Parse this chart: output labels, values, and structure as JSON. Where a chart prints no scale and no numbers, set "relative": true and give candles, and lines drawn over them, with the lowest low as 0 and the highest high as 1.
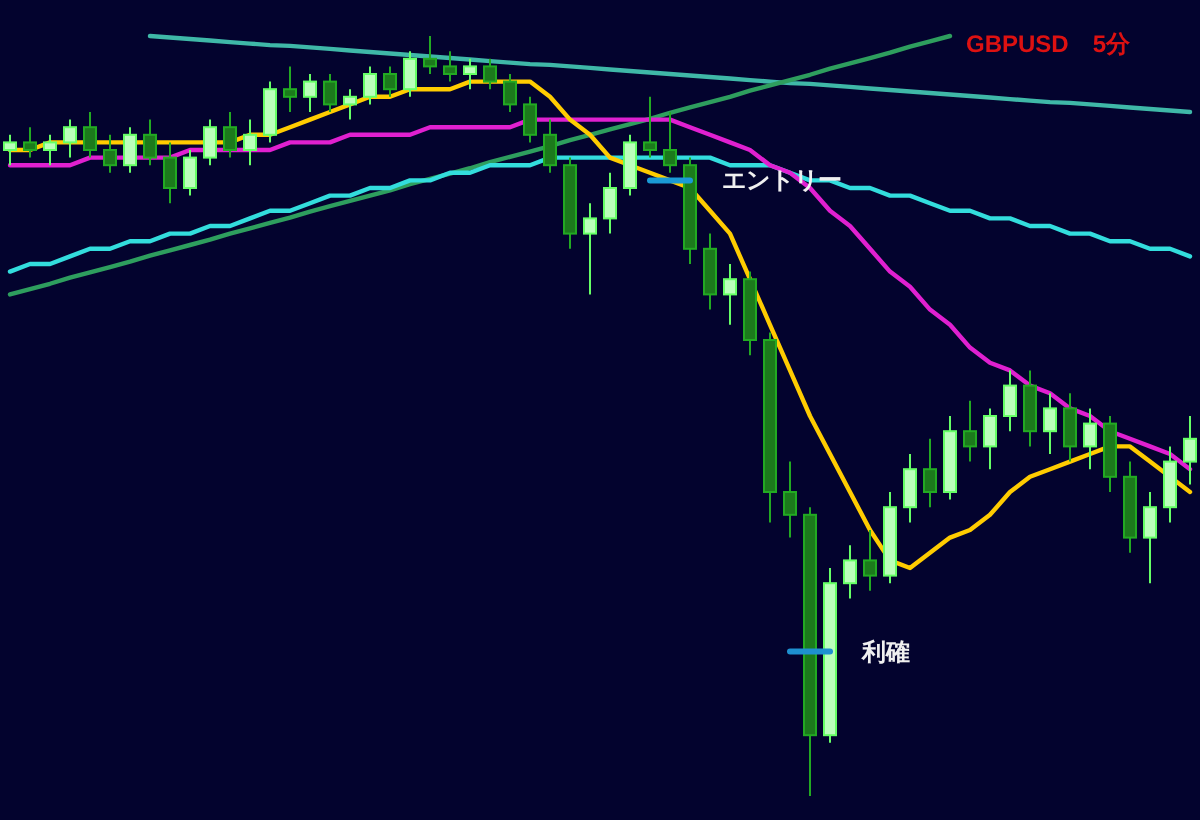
{
  "chart_data": {
    "type": "candlestick",
    "title": "GBPUSD　5分",
    "relative": true,
    "categories": [
      null,
      null,
      null,
      null,
      null,
      null,
      null,
      null,
      null,
      null,
      null,
      null,
      null,
      null,
      null,
      null,
      null,
      null,
      null,
      null,
      null,
      null,
      null,
      null,
      null,
      null,
      null,
      null,
      null,
      null,
      null,
      null,
      null,
      null,
      null,
      null,
      null,
      null,
      null,
      null,
      null,
      null,
      null,
      null,
      null,
      null,
      null,
      null,
      null,
      null,
      null,
      null,
      null,
      null,
      null,
      null,
      null,
      null,
      null,
      null
    ],
    "ohlc": [
      [
        0.85,
        0.87,
        0.83,
        0.86
      ],
      [
        0.86,
        0.88,
        0.84,
        0.85
      ],
      [
        0.85,
        0.87,
        0.83,
        0.86
      ],
      [
        0.86,
        0.89,
        0.84,
        0.88
      ],
      [
        0.88,
        0.9,
        0.84,
        0.85
      ],
      [
        0.85,
        0.87,
        0.82,
        0.83
      ],
      [
        0.83,
        0.88,
        0.82,
        0.87
      ],
      [
        0.87,
        0.89,
        0.83,
        0.84
      ],
      [
        0.84,
        0.86,
        0.78,
        0.8
      ],
      [
        0.8,
        0.85,
        0.79,
        0.84
      ],
      [
        0.84,
        0.89,
        0.83,
        0.88
      ],
      [
        0.88,
        0.9,
        0.84,
        0.85
      ],
      [
        0.85,
        0.89,
        0.83,
        0.87
      ],
      [
        0.87,
        0.94,
        0.86,
        0.93
      ],
      [
        0.93,
        0.96,
        0.9,
        0.92
      ],
      [
        0.92,
        0.95,
        0.9,
        0.94
      ],
      [
        0.94,
        0.95,
        0.9,
        0.91
      ],
      [
        0.91,
        0.93,
        0.89,
        0.92
      ],
      [
        0.92,
        0.96,
        0.91,
        0.95
      ],
      [
        0.95,
        0.96,
        0.92,
        0.93
      ],
      [
        0.93,
        0.98,
        0.92,
        0.97
      ],
      [
        0.97,
        1.0,
        0.95,
        0.96
      ],
      [
        0.96,
        0.98,
        0.94,
        0.95
      ],
      [
        0.95,
        0.97,
        0.93,
        0.96
      ],
      [
        0.96,
        0.97,
        0.93,
        0.94
      ],
      [
        0.94,
        0.95,
        0.9,
        0.91
      ],
      [
        0.91,
        0.92,
        0.86,
        0.87
      ],
      [
        0.87,
        0.89,
        0.82,
        0.83
      ],
      [
        0.83,
        0.84,
        0.72,
        0.74
      ],
      [
        0.74,
        0.78,
        0.66,
        0.76
      ],
      [
        0.76,
        0.82,
        0.74,
        0.8
      ],
      [
        0.8,
        0.87,
        0.79,
        0.86
      ],
      [
        0.86,
        0.92,
        0.84,
        0.85
      ],
      [
        0.85,
        0.9,
        0.82,
        0.83
      ],
      [
        0.83,
        0.84,
        0.7,
        0.72
      ],
      [
        0.72,
        0.74,
        0.64,
        0.66
      ],
      [
        0.66,
        0.7,
        0.62,
        0.68
      ],
      [
        0.68,
        0.69,
        0.58,
        0.6
      ],
      [
        0.6,
        0.61,
        0.36,
        0.4
      ],
      [
        0.4,
        0.44,
        0.34,
        0.37
      ],
      [
        0.37,
        0.38,
        0.0,
        0.08
      ],
      [
        0.08,
        0.3,
        0.07,
        0.28
      ],
      [
        0.28,
        0.33,
        0.26,
        0.31
      ],
      [
        0.31,
        0.35,
        0.27,
        0.29
      ],
      [
        0.29,
        0.4,
        0.28,
        0.38
      ],
      [
        0.38,
        0.45,
        0.36,
        0.43
      ],
      [
        0.43,
        0.47,
        0.38,
        0.4
      ],
      [
        0.4,
        0.5,
        0.39,
        0.48
      ],
      [
        0.48,
        0.52,
        0.44,
        0.46
      ],
      [
        0.46,
        0.51,
        0.43,
        0.5
      ],
      [
        0.5,
        0.56,
        0.48,
        0.54
      ],
      [
        0.54,
        0.56,
        0.46,
        0.48
      ],
      [
        0.48,
        0.53,
        0.45,
        0.51
      ],
      [
        0.51,
        0.53,
        0.44,
        0.46
      ],
      [
        0.46,
        0.51,
        0.43,
        0.49
      ],
      [
        0.49,
        0.5,
        0.4,
        0.42
      ],
      [
        0.42,
        0.44,
        0.32,
        0.34
      ],
      [
        0.34,
        0.4,
        0.28,
        0.38
      ],
      [
        0.38,
        0.46,
        0.36,
        0.44
      ],
      [
        0.44,
        0.5,
        0.41,
        0.47
      ]
    ],
    "series": [
      {
        "type": "line",
        "color": "#3fb8a8",
        "values": [
          null,
          null,
          null,
          null,
          null,
          null,
          null,
          1.0,
          0.998,
          0.996,
          0.994,
          0.992,
          0.99,
          0.988,
          0.987,
          0.985,
          0.983,
          0.981,
          0.979,
          0.977,
          0.975,
          0.973,
          0.971,
          0.969,
          0.967,
          0.965,
          0.963,
          0.962,
          0.96,
          0.958,
          0.956,
          0.954,
          0.952,
          0.95,
          0.948,
          0.946,
          0.944,
          0.942,
          0.94,
          0.938,
          0.937,
          0.935,
          0.933,
          0.931,
          0.929,
          0.927,
          0.925,
          0.923,
          0.921,
          0.919,
          0.917,
          0.915,
          0.913,
          0.912,
          0.91,
          0.908,
          0.906,
          0.904,
          0.902,
          0.9
        ]
      },
      {
        "type": "line",
        "color": "#2e9e5e",
        "values": [
          0.66,
          0.667,
          0.674,
          0.682,
          0.689,
          0.696,
          0.703,
          0.711,
          0.718,
          0.725,
          0.732,
          0.74,
          0.747,
          0.754,
          0.761,
          0.769,
          0.776,
          0.783,
          0.79,
          0.797,
          0.805,
          0.812,
          0.819,
          0.826,
          0.834,
          0.841,
          0.848,
          0.855,
          0.863,
          0.87,
          0.877,
          0.884,
          0.891,
          0.899,
          0.906,
          0.913,
          0.92,
          0.928,
          0.935,
          0.942,
          0.949,
          0.957,
          0.964,
          0.971,
          0.978,
          0.986,
          0.993,
          1.0,
          null,
          null,
          null,
          null,
          null,
          null,
          null,
          null,
          null,
          null,
          null,
          null
        ]
      },
      {
        "type": "line",
        "color": "#33dddd",
        "values": [
          0.69,
          0.7,
          0.7,
          0.71,
          0.72,
          0.72,
          0.73,
          0.73,
          0.74,
          0.74,
          0.75,
          0.75,
          0.76,
          0.77,
          0.77,
          0.78,
          0.79,
          0.79,
          0.8,
          0.8,
          0.81,
          0.81,
          0.82,
          0.82,
          0.83,
          0.83,
          0.83,
          0.84,
          0.84,
          0.84,
          0.84,
          0.84,
          0.84,
          0.84,
          0.84,
          0.84,
          0.83,
          0.83,
          0.83,
          0.82,
          0.81,
          0.81,
          0.8,
          0.8,
          0.79,
          0.79,
          0.78,
          0.77,
          0.77,
          0.76,
          0.76,
          0.75,
          0.75,
          0.74,
          0.74,
          0.73,
          0.73,
          0.72,
          0.72,
          0.71
        ]
      },
      {
        "type": "line",
        "color": "#e020d0",
        "values": [
          0.83,
          0.83,
          0.83,
          0.83,
          0.84,
          0.84,
          0.84,
          0.84,
          0.84,
          0.85,
          0.85,
          0.85,
          0.85,
          0.85,
          0.86,
          0.86,
          0.86,
          0.87,
          0.87,
          0.87,
          0.87,
          0.88,
          0.88,
          0.88,
          0.88,
          0.88,
          0.89,
          0.89,
          0.89,
          0.89,
          0.89,
          0.89,
          0.89,
          0.89,
          0.88,
          0.87,
          0.86,
          0.85,
          0.83,
          0.82,
          0.8,
          0.77,
          0.75,
          0.72,
          0.69,
          0.67,
          0.64,
          0.62,
          0.59,
          0.57,
          0.56,
          0.54,
          0.53,
          0.51,
          0.5,
          0.48,
          0.47,
          0.46,
          0.45,
          0.43
        ]
      },
      {
        "type": "line",
        "color": "#ffcc00",
        "values": [
          0.85,
          0.85,
          0.86,
          0.86,
          0.86,
          0.86,
          0.86,
          0.86,
          0.86,
          0.86,
          0.86,
          0.86,
          0.87,
          0.87,
          0.88,
          0.89,
          0.9,
          0.91,
          0.92,
          0.92,
          0.93,
          0.93,
          0.93,
          0.94,
          0.94,
          0.94,
          0.94,
          0.92,
          0.89,
          0.87,
          0.84,
          0.83,
          0.82,
          0.81,
          0.8,
          0.77,
          0.74,
          0.68,
          0.62,
          0.56,
          0.5,
          0.45,
          0.4,
          0.35,
          0.31,
          0.3,
          0.32,
          0.34,
          0.35,
          0.37,
          0.4,
          0.42,
          0.43,
          0.44,
          0.45,
          0.46,
          0.46,
          0.44,
          0.42,
          0.4
        ]
      },
      {
        "type": "line",
        "name": "エントリー",
        "color": "#1a9ad6",
        "values": [
          null,
          null,
          null,
          null,
          null,
          null,
          null,
          null,
          null,
          null,
          null,
          null,
          null,
          null,
          null,
          null,
          null,
          null,
          null,
          null,
          null,
          null,
          null,
          null,
          null,
          null,
          null,
          null,
          null,
          null,
          null,
          null,
          0.81,
          0.81,
          0.81,
          null,
          null,
          null,
          null,
          null,
          null,
          null,
          null,
          null,
          null,
          null,
          null,
          null,
          null,
          null,
          null,
          null,
          null,
          null,
          null,
          null,
          null,
          null,
          null,
          null
        ]
      },
      {
        "type": "line",
        "name": "利確",
        "color": "#1e90d0",
        "values": [
          null,
          null,
          null,
          null,
          null,
          null,
          null,
          null,
          null,
          null,
          null,
          null,
          null,
          null,
          null,
          null,
          null,
          null,
          null,
          null,
          null,
          null,
          null,
          null,
          null,
          null,
          null,
          null,
          null,
          null,
          null,
          null,
          null,
          null,
          null,
          null,
          null,
          null,
          null,
          0.19,
          0.19,
          0.19,
          null,
          null,
          null,
          null,
          null,
          null,
          null,
          null,
          null,
          null,
          null,
          null,
          null,
          null,
          null,
          null,
          null,
          null
        ]
      }
    ]
  }
}
